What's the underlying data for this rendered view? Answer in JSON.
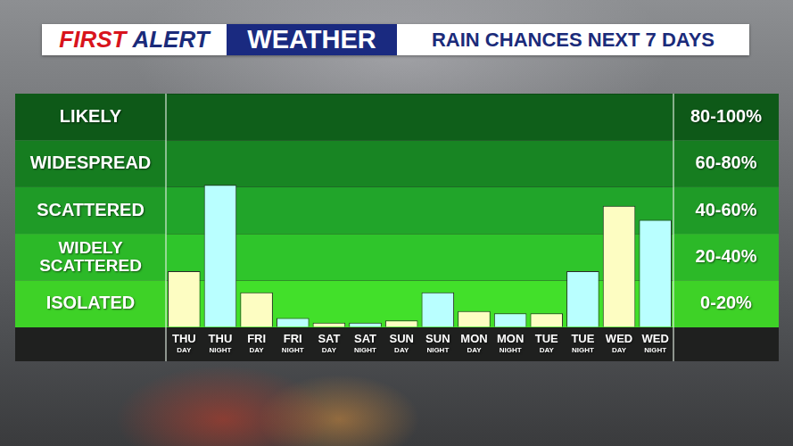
{
  "header": {
    "brand": [
      "FIRST",
      "ALERT"
    ],
    "badge": "WEATHER"
  },
  "chart_data": {
    "type": "bar",
    "title": "RAIN CHANCES NEXT 7 DAYS",
    "categories": [
      "THU DAY",
      "THU NIGHT",
      "FRI DAY",
      "FRI NIGHT",
      "SAT DAY",
      "SAT NIGHT",
      "SUN DAY",
      "SUN NIGHT",
      "MON DAY",
      "MON NIGHT",
      "TUE DAY",
      "TUE NIGHT",
      "WED DAY",
      "WED NIGHT"
    ],
    "values": [
      24,
      61,
      15,
      4,
      2,
      2,
      3,
      15,
      7,
      6,
      6,
      24,
      52,
      46
    ],
    "colors": [
      "#fdfdc2",
      "#b9ffff",
      "#fdfdc2",
      "#b9ffff",
      "#fdfdc2",
      "#b9ffff",
      "#fdfdc2",
      "#b9ffff",
      "#fdfdc2",
      "#b9ffff",
      "#fdfdc2",
      "#b9ffff",
      "#fdfdc2",
      "#b9ffff"
    ],
    "ylim": [
      0,
      100
    ],
    "yticks": [
      0,
      20,
      40,
      60,
      80,
      100
    ],
    "grid": true,
    "tick_labels": "x",
    "bands": [
      {
        "from": 80,
        "to": 100,
        "label": "LIKELY",
        "range_label": "80-100%"
      },
      {
        "from": 60,
        "to": 80,
        "label": "WIDESPREAD",
        "range_label": "60-80%"
      },
      {
        "from": 40,
        "to": 60,
        "label": "SCATTERED",
        "range_label": "40-60%"
      },
      {
        "from": 20,
        "to": 40,
        "label": "WIDELY SCATTERED",
        "range_label": "20-40%"
      },
      {
        "from": 0,
        "to": 20,
        "label": "ISOLATED",
        "range_label": "0-20%"
      }
    ]
  }
}
